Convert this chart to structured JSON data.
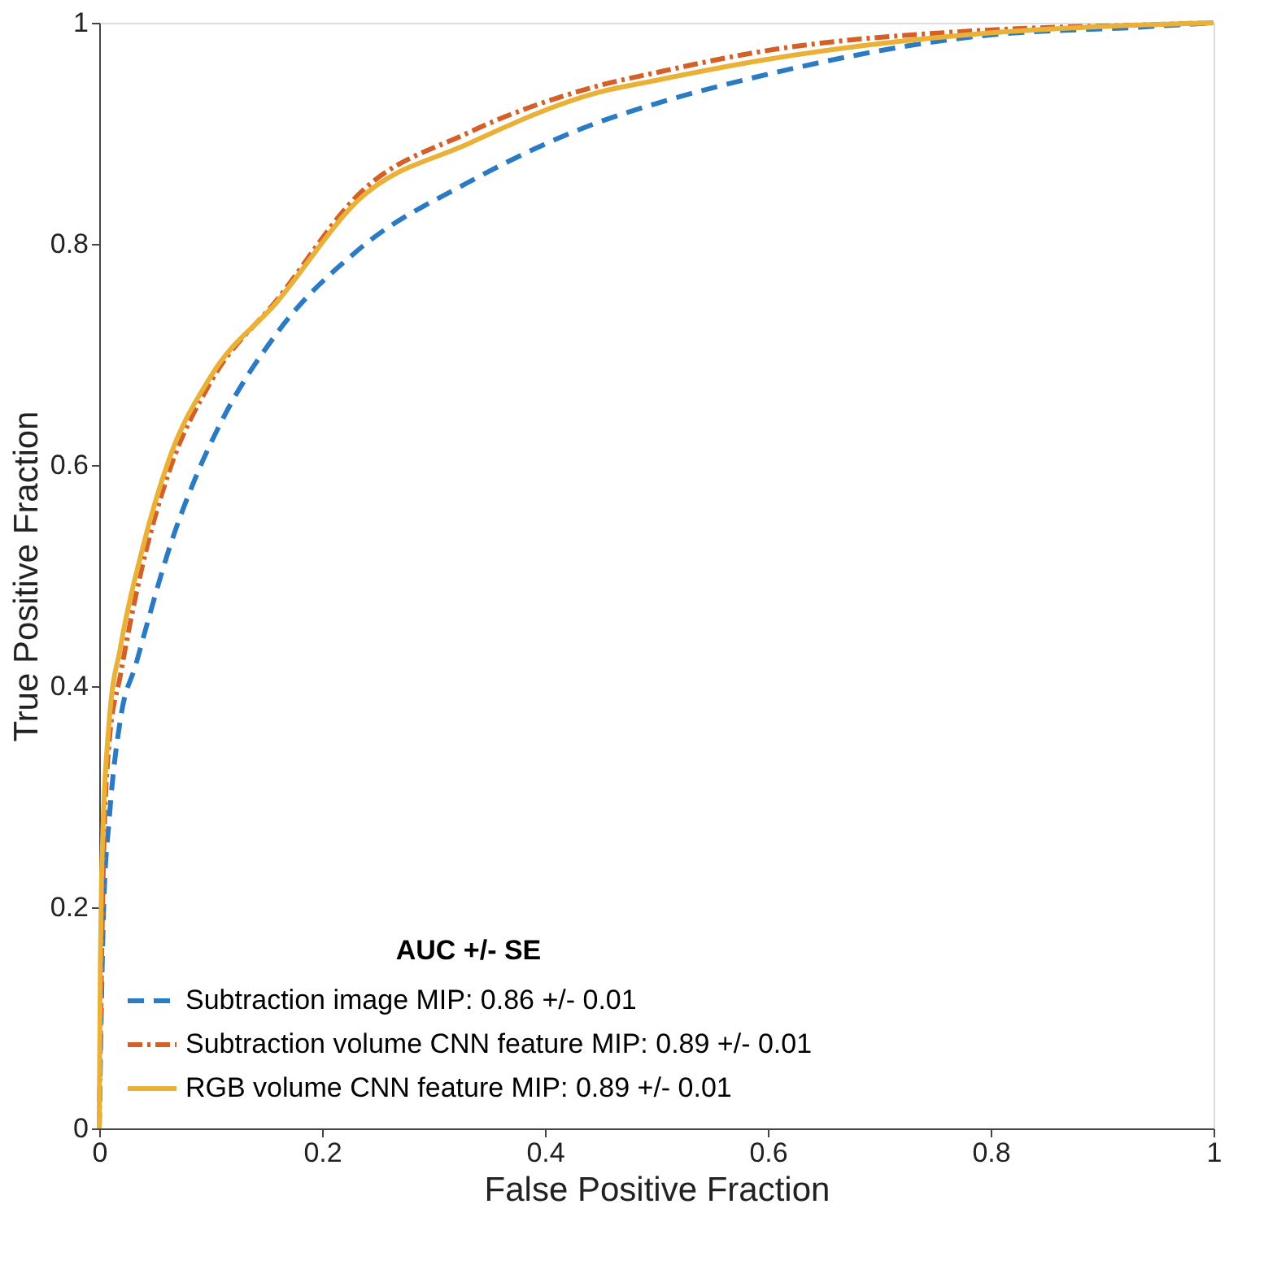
{
  "chart_data": {
    "type": "line",
    "xlabel": "False Positive Fraction",
    "ylabel": "True Positive Fraction",
    "legend_title": "AUC +/- SE",
    "xlim": [
      0,
      1
    ],
    "ylim": [
      0,
      1
    ],
    "xticks": [
      0,
      0.2,
      0.4,
      0.6,
      0.8,
      1
    ],
    "yticks": [
      0,
      0.2,
      0.4,
      0.6,
      0.8,
      1
    ],
    "grid": false,
    "legend": "bottom left",
    "marker": "none",
    "series": [
      {
        "name": "Subtraction image MIP: 0.86 +/- 0.01",
        "color": "#2b7bc4",
        "line_style": "dashed",
        "x": [
          0,
          0.004,
          0.009,
          0.019,
          0.033,
          0.044,
          0.063,
          0.087,
          0.11,
          0.16,
          0.233,
          0.33,
          0.448,
          0.5,
          0.594,
          0.79,
          0.933,
          1
        ],
        "values": [
          0,
          0.2,
          0.28,
          0.37,
          0.42,
          0.46,
          0.525,
          0.59,
          0.64,
          0.72,
          0.795,
          0.855,
          0.91,
          0.927,
          0.952,
          0.988,
          0.996,
          1
        ]
      },
      {
        "name": "Subtraction volume CNN feature MIP: 0.89 +/- 0.01",
        "color": "#d45f27",
        "line_style": "dashdot",
        "x": [
          0,
          0.004,
          0.009,
          0.019,
          0.039,
          0.063,
          0.1,
          0.16,
          0.233,
          0.33,
          0.448,
          0.5,
          0.594,
          0.79,
          0.933,
          1
        ],
        "values": [
          0,
          0.25,
          0.35,
          0.41,
          0.51,
          0.595,
          0.675,
          0.75,
          0.845,
          0.9,
          0.943,
          0.955,
          0.974,
          0.993,
          0.998,
          1
        ]
      },
      {
        "name": "RGB volume CNN feature MIP: 0.89 +/- 0.01",
        "color": "#eab139",
        "line_style": "solid",
        "x": [
          0,
          0.001,
          0.002,
          0.009,
          0.019,
          0.039,
          0.063,
          0.1,
          0.16,
          0.233,
          0.33,
          0.448,
          0.5,
          0.594,
          0.79,
          0.933,
          1
        ],
        "values": [
          0,
          0.15,
          0.223,
          0.369,
          0.435,
          0.525,
          0.606,
          0.68,
          0.748,
          0.84,
          0.89,
          0.937,
          0.948,
          0.966,
          0.99,
          0.998,
          1
        ]
      }
    ]
  }
}
